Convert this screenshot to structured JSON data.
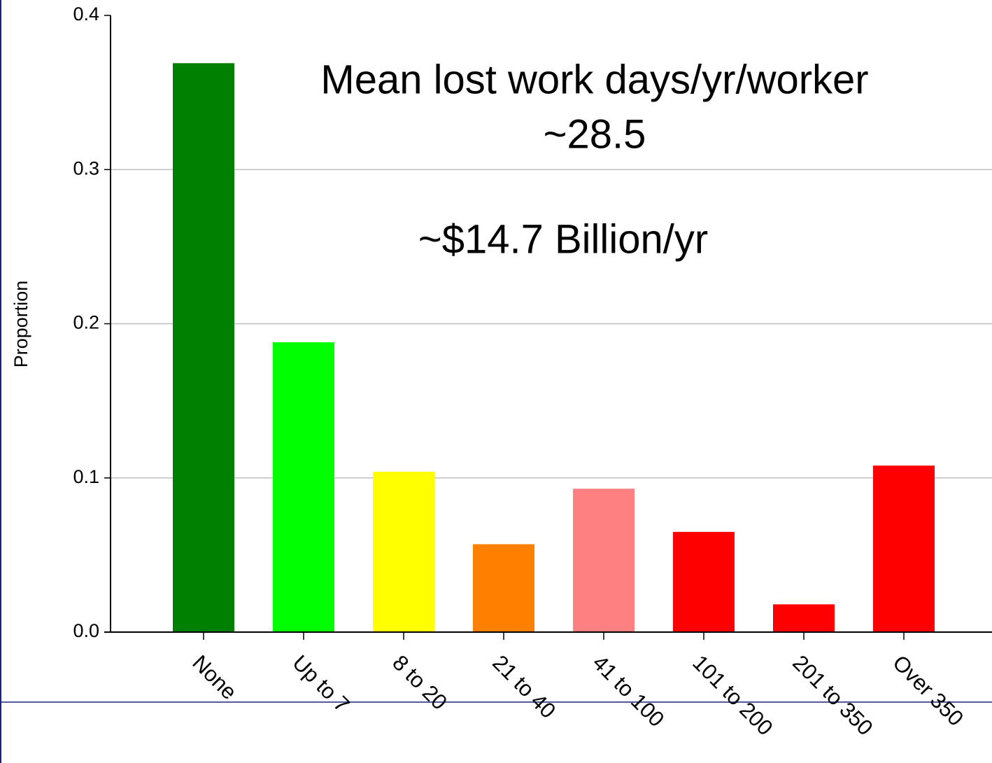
{
  "chart_data": {
    "type": "bar",
    "y_label": "Proportion",
    "annotations": [
      "Mean lost work days/yr/worker",
      "~28.5",
      "~$14.7 Billion/yr"
    ],
    "categories": [
      "None",
      "Up to 7",
      "8 to 20",
      "21 to 40",
      "41 to 100",
      "101 to 200",
      "201 to 350",
      "Over 350"
    ],
    "values": [
      0.369,
      0.188,
      0.104,
      0.057,
      0.093,
      0.065,
      0.018,
      0.108
    ],
    "colors": [
      "#008000",
      "#00ff00",
      "#ffff00",
      "#ff8000",
      "#ff8080",
      "#ff0000",
      "#ff0000",
      "#ff0000"
    ],
    "ylim": [
      0,
      0.4
    ],
    "yticks": [
      {
        "value": 0,
        "label": "0.0"
      },
      0.1,
      0.2,
      0.3,
      0.4
    ],
    "grid": true
  }
}
